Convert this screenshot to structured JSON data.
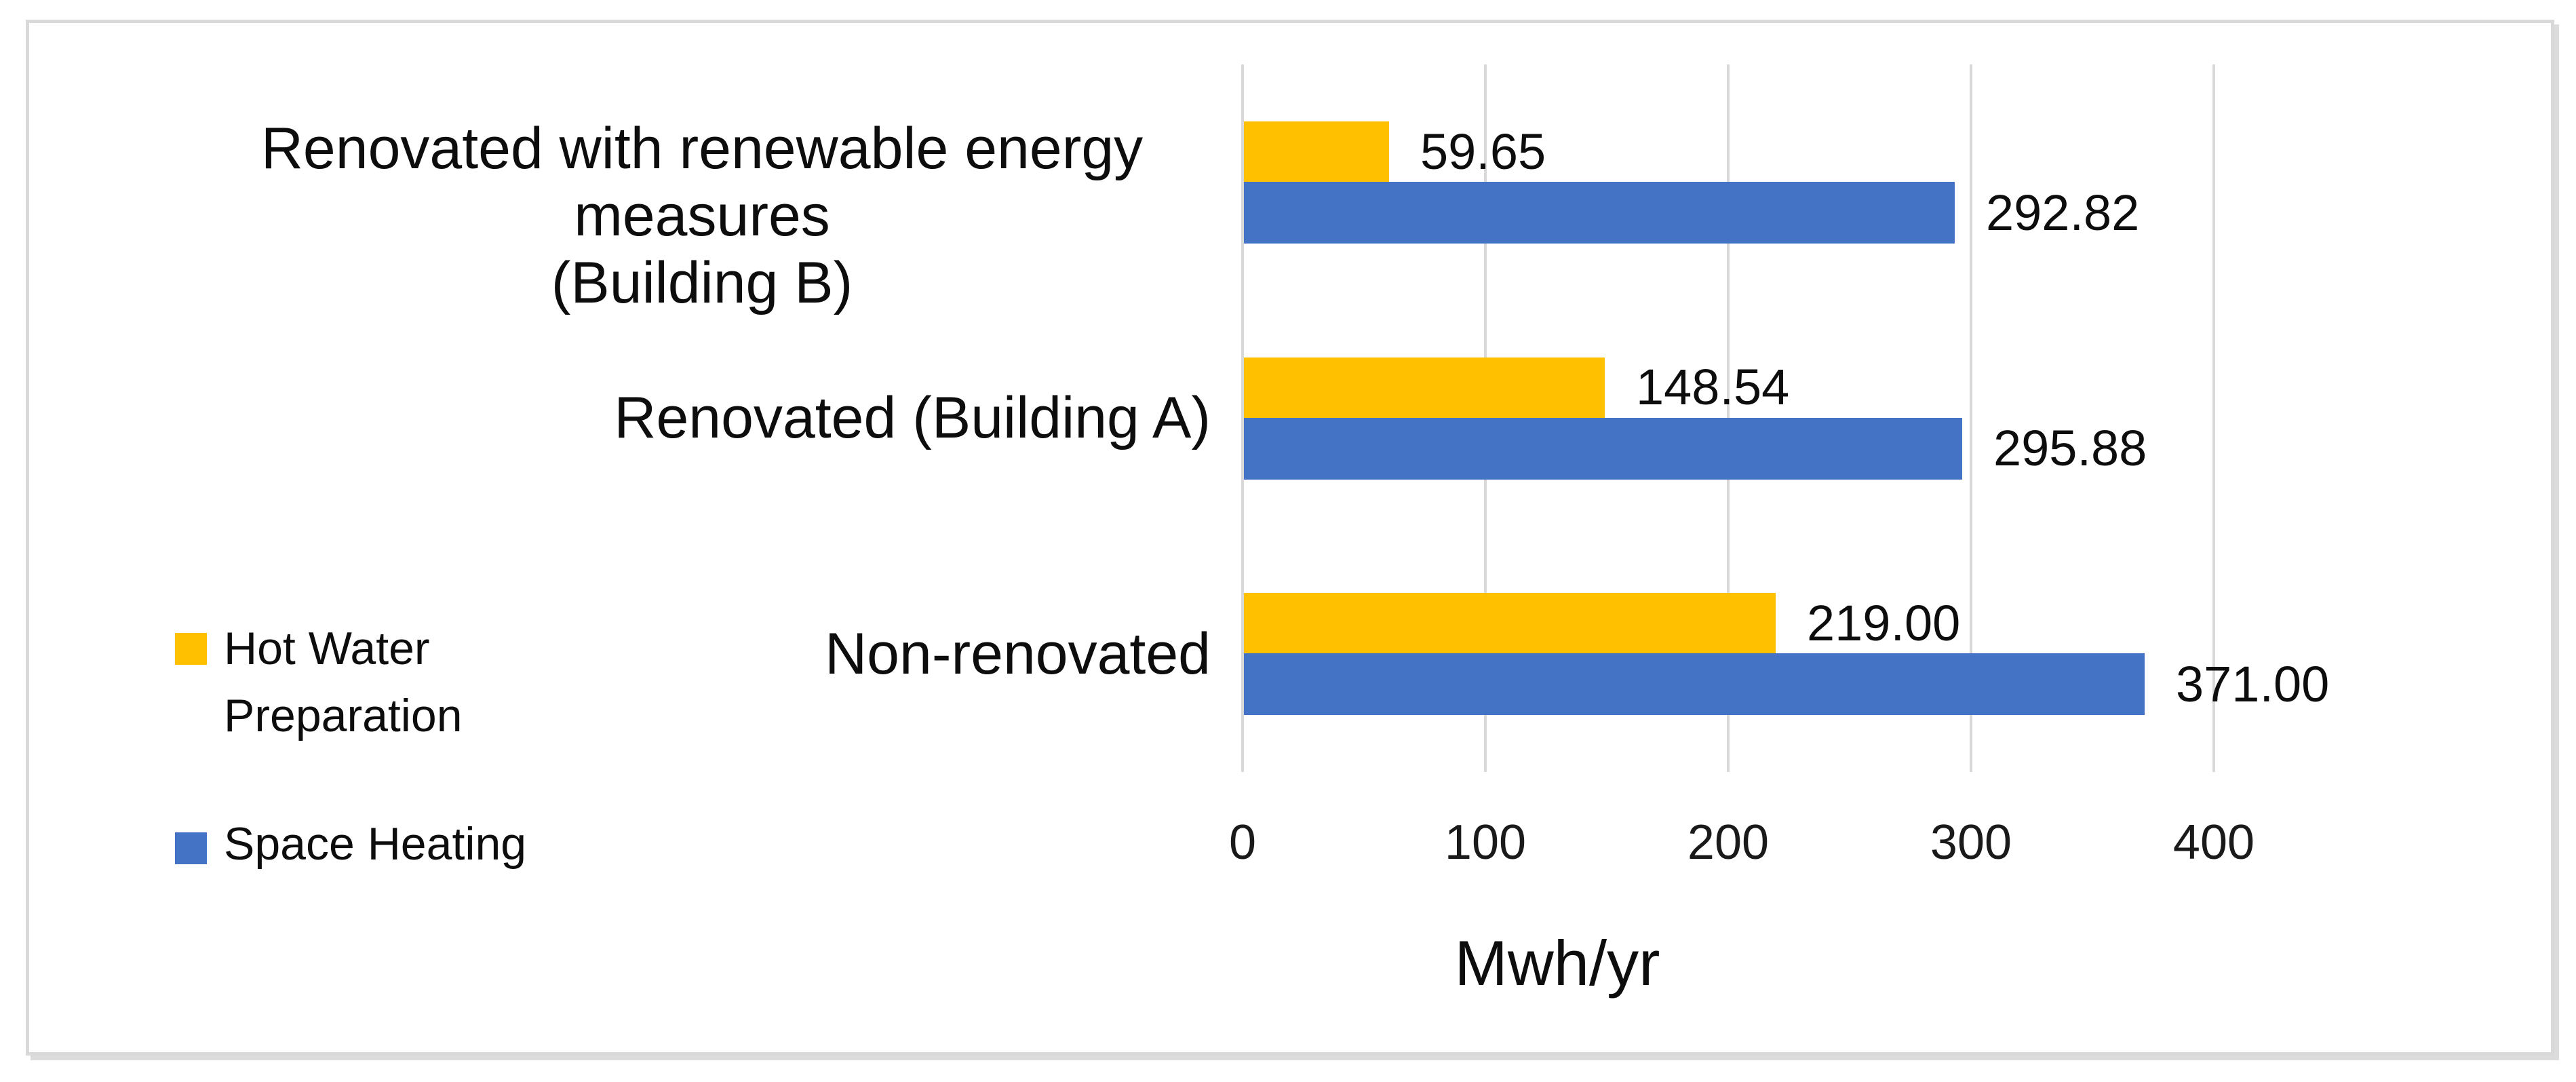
{
  "chart_data": {
    "type": "bar",
    "orientation": "horizontal",
    "categories": [
      "Renovated with renewable energy measures\n(Building B)",
      "Renovated (Building A)",
      "Non-renovated"
    ],
    "series": [
      {
        "name": "Hot Water Preparation",
        "color": "#FFC000",
        "values": [
          59.65,
          148.54,
          219.0
        ]
      },
      {
        "name": "Space Heating",
        "color": "#4472C4",
        "values": [
          292.82,
          295.88,
          371.0
        ]
      }
    ],
    "value_labels": [
      [
        "59.65",
        "292.82"
      ],
      [
        "148.54",
        "295.88"
      ],
      [
        "219.00",
        "371.00"
      ]
    ],
    "x_ticks": [
      "0",
      "100",
      "200",
      "300",
      "400"
    ],
    "xlim": [
      0,
      400
    ],
    "xlabel": "Mwh/yr",
    "grid": true,
    "gridline_color": "#D9D9D9",
    "frame_color": "#D9D9D9",
    "legend_position": "left-bottom"
  },
  "legend": {
    "items": [
      {
        "label": "Hot Water\nPreparation",
        "color": "#FFC000"
      },
      {
        "label": "Space Heating",
        "color": "#4472C4"
      }
    ]
  }
}
